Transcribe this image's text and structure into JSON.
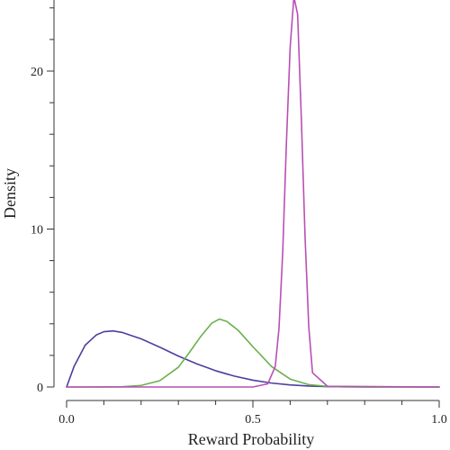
{
  "chart_data": {
    "type": "line",
    "title": "",
    "xlabel": "Reward Probability",
    "ylabel": "Density",
    "xlim": [
      0.0,
      1.0
    ],
    "ylim": [
      0,
      24.5
    ],
    "x_ticks": [
      0.0,
      0.5,
      1.0
    ],
    "x_tick_labels": [
      "0.0",
      "0.5",
      "1.0"
    ],
    "x_minor_step": 0.1,
    "y_ticks": [
      0,
      10,
      20
    ],
    "y_tick_labels": [
      "0",
      "10",
      "20"
    ],
    "y_minor_step": 2,
    "grid": false,
    "legend": "none",
    "series": [
      {
        "color": "#4b3f9e",
        "x": [
          0.0,
          0.02,
          0.05,
          0.08,
          0.1,
          0.125,
          0.15,
          0.2,
          0.25,
          0.3,
          0.35,
          0.4,
          0.45,
          0.5,
          0.55,
          0.6,
          0.65,
          0.7,
          0.75,
          0.8,
          0.9,
          1.0
        ],
        "y": [
          0.0,
          1.3,
          2.65,
          3.3,
          3.5,
          3.55,
          3.45,
          3.05,
          2.52,
          1.96,
          1.46,
          1.03,
          0.69,
          0.43,
          0.25,
          0.13,
          0.06,
          0.025,
          0.01,
          0.003,
          0.0,
          0.0
        ]
      },
      {
        "color": "#6ab04c",
        "x": [
          0.0,
          0.1,
          0.15,
          0.2,
          0.25,
          0.3,
          0.33,
          0.36,
          0.39,
          0.41,
          0.43,
          0.46,
          0.5,
          0.55,
          0.6,
          0.65,
          0.7,
          0.75,
          0.8,
          1.0
        ],
        "y": [
          0.0,
          0.003,
          0.02,
          0.1,
          0.4,
          1.25,
          2.2,
          3.2,
          4.05,
          4.3,
          4.15,
          3.6,
          2.55,
          1.3,
          0.5,
          0.15,
          0.04,
          0.008,
          0.0,
          0.0
        ]
      },
      {
        "color": "#b94fb5",
        "x": [
          0.0,
          0.5,
          0.54,
          0.56,
          0.57,
          0.58,
          0.59,
          0.6,
          0.61,
          0.62,
          0.63,
          0.64,
          0.65,
          0.66,
          0.7,
          1.0
        ],
        "y": [
          0.0,
          0.0,
          0.2,
          1.3,
          3.7,
          8.5,
          15.5,
          21.5,
          24.7,
          23.6,
          17.0,
          9.5,
          3.8,
          0.9,
          0.05,
          0.0
        ]
      }
    ]
  }
}
